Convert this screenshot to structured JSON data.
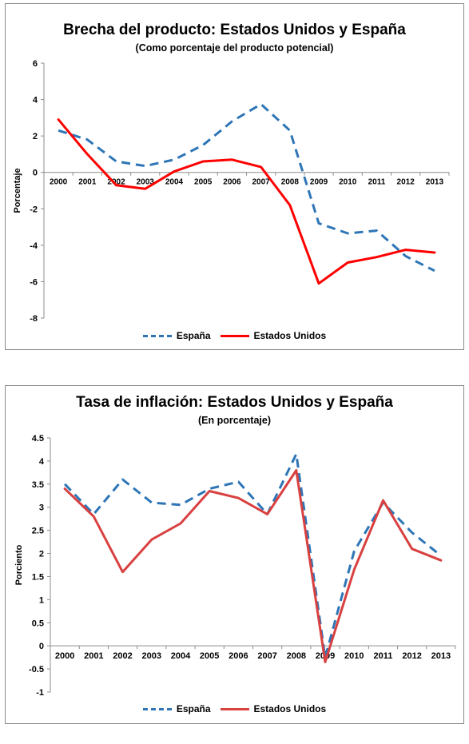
{
  "chart_data": [
    {
      "type": "line",
      "title": "Brecha del producto: Estados Unidos y España",
      "subtitle": "(Como porcentaje del producto potencial)",
      "ylabel": "Porcentaje",
      "xlabel": "",
      "ylim": [
        -8,
        6
      ],
      "yticks": [
        "6",
        "4",
        "2",
        "0",
        "-2",
        "-4",
        "-6",
        "-8"
      ],
      "categories": [
        "2000",
        "2001",
        "2002",
        "2003",
        "2004",
        "2005",
        "2006",
        "2007",
        "2008",
        "2009",
        "2010",
        "2011",
        "2012",
        "2013"
      ],
      "series": [
        {
          "name": "España",
          "color": "#2e75b6",
          "style": "dashed",
          "values": [
            2.3,
            1.8,
            0.6,
            0.35,
            0.7,
            1.5,
            2.8,
            3.75,
            2.3,
            -2.8,
            -3.35,
            -3.2,
            -4.6,
            -5.4
          ]
        },
        {
          "name": "Estados Unidos",
          "color": "#ff0000",
          "style": "solid",
          "values": [
            2.9,
            1.0,
            -0.7,
            -0.9,
            0.05,
            0.6,
            0.7,
            0.3,
            -1.8,
            -6.1,
            -4.95,
            -4.65,
            -4.25,
            -4.4
          ]
        }
      ],
      "grid": false,
      "legend": "bottom"
    },
    {
      "type": "line",
      "title": "Tasa de inflación: Estados Unidos y España",
      "subtitle": "(En porcentaje)",
      "ylabel": "Porciento",
      "xlabel": "",
      "ylim": [
        -1,
        4.5
      ],
      "yticks": [
        "4.5",
        "4",
        "3.5",
        "3",
        "2.5",
        "2",
        "1.5",
        "1",
        "0.5",
        "0",
        "-0.5",
        "-1"
      ],
      "categories": [
        "2000",
        "2001",
        "2002",
        "2003",
        "2004",
        "2005",
        "2006",
        "2007",
        "2008",
        "2009",
        "2010",
        "2011",
        "2012",
        "2013"
      ],
      "series": [
        {
          "name": "España",
          "color": "#2e75b6",
          "style": "dashed",
          "values": [
            3.5,
            2.85,
            3.6,
            3.1,
            3.05,
            3.4,
            3.55,
            2.85,
            4.15,
            -0.25,
            2.05,
            3.1,
            2.45,
            1.95
          ]
        },
        {
          "name": "Estados Unidos",
          "color": "#d94040",
          "style": "solid",
          "values": [
            3.4,
            2.8,
            1.6,
            2.3,
            2.65,
            3.35,
            3.2,
            2.85,
            3.8,
            -0.35,
            1.65,
            3.15,
            2.1,
            1.85
          ]
        }
      ],
      "grid": false,
      "legend": "bottom"
    }
  ]
}
